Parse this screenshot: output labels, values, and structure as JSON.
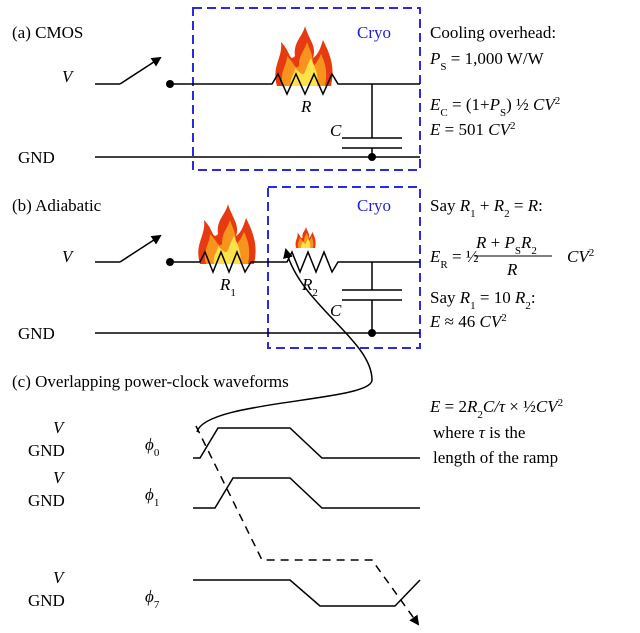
{
  "a": {
    "label": "(a) CMOS",
    "cryo": "Cryo",
    "v": "V",
    "r": "R",
    "c": "C",
    "gnd": "GND",
    "overhead": "Cooling overhead:",
    "ps": [
      "P",
      "S",
      " = 1,000 W/W"
    ],
    "ec": [
      "E",
      "C",
      " = (1+",
      "P",
      "S",
      ") ½ ",
      "CV",
      "2"
    ],
    "e": [
      "E",
      " = 501 ",
      "CV",
      "2"
    ]
  },
  "b": {
    "label": "(b) Adiabatic",
    "cryo": "Cryo",
    "v": "V",
    "r1": [
      "R",
      "1"
    ],
    "r2": [
      "R",
      "2"
    ],
    "c": "C",
    "gnd": "GND",
    "say1": [
      "Say ",
      "R",
      "1",
      " + ",
      "R",
      "2",
      " = ",
      "R",
      ":"
    ],
    "er": [
      "E",
      "R",
      " = ½"
    ],
    "num": [
      "R",
      " + ",
      "P",
      "S",
      "R",
      "2"
    ],
    "den": "R",
    "tail": [
      "CV",
      "2"
    ],
    "say2": [
      "Say ",
      "R",
      "1",
      " = 10 ",
      "R",
      "2",
      ":"
    ],
    "e": [
      "E",
      " ≈ 46 ",
      "CV",
      "2"
    ]
  },
  "c": {
    "label": "(c) Overlapping power-clock waveforms",
    "rows": [
      {
        "v": "V",
        "gnd": "GND",
        "phi": [
          "ϕ",
          "0"
        ]
      },
      {
        "v": "V",
        "gnd": "GND",
        "phi": [
          "ϕ",
          "1"
        ]
      },
      {
        "v": "V",
        "gnd": "GND",
        "phi": [
          "ϕ",
          "7"
        ]
      }
    ],
    "e": [
      "E",
      " = 2",
      "R",
      "2",
      "C/",
      "τ",
      " × ½",
      "CV",
      "2"
    ],
    "where": [
      "where ",
      "τ",
      " is the"
    ],
    "length": "length of the ramp"
  }
}
